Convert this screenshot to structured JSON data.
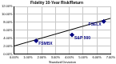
{
  "chart_data": {
    "type": "scatter",
    "title": "Fidelity 10-Year Risk/Return",
    "x_label": "Standard Deviation",
    "xlim": [
      0,
      7
    ],
    "ylim": [
      0,
      12
    ],
    "xticks": [
      {
        "value": 0,
        "label": "0.00%"
      },
      {
        "value": 1,
        "label": "1.00%"
      },
      {
        "value": 2,
        "label": "2.00%"
      },
      {
        "value": 3,
        "label": "3.00%"
      },
      {
        "value": 4,
        "label": "4.00%"
      },
      {
        "value": 5,
        "label": "5.00%"
      },
      {
        "value": 6,
        "label": "6.00%"
      },
      {
        "value": 7,
        "label": "7.00%"
      }
    ],
    "yticks": [
      {
        "value": 0,
        "label": "0.00%"
      },
      {
        "value": 2,
        "label": "2.00%"
      },
      {
        "value": 4,
        "label": "4.00%"
      },
      {
        "value": 6,
        "label": "6.00%"
      },
      {
        "value": 8,
        "label": "8.00%"
      },
      {
        "value": 10,
        "label": "10.00%"
      },
      {
        "value": 12,
        "label": "12.00%"
      }
    ],
    "grid": true,
    "series": [
      {
        "type": "scatter",
        "color": "#000080",
        "marker": "diamond",
        "x": [
          1.6,
          4.2,
          6.5
        ],
        "values": [
          3.3,
          4.8,
          8.2
        ],
        "point_labels": [
          "FSMBX",
          "S&P 500",
          "FSELX"
        ]
      },
      {
        "type": "line",
        "color": "#000000",
        "line_style": "solid",
        "x": [
          0,
          7
        ],
        "values": [
          2.0,
          9.0
        ]
      }
    ]
  }
}
